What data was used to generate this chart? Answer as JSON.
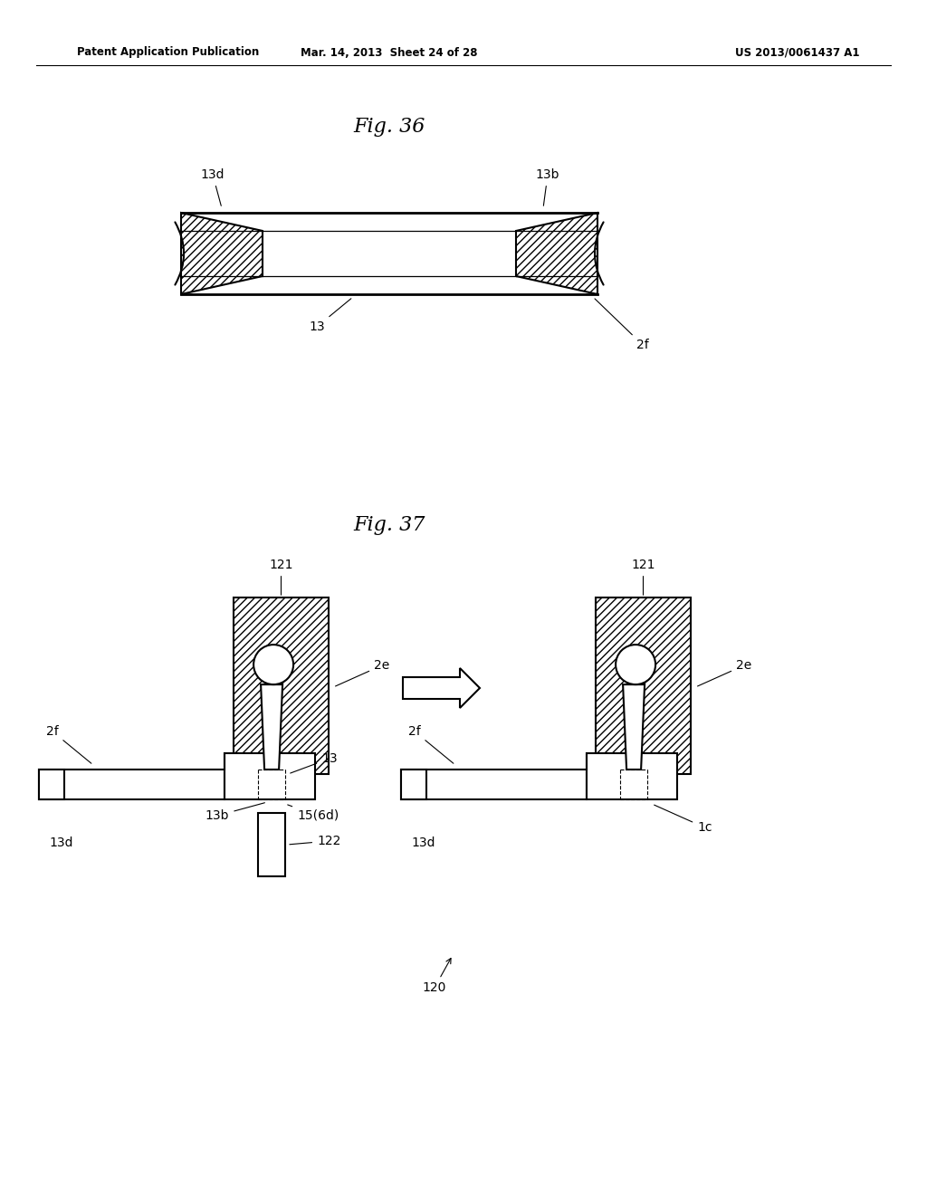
{
  "bg_color": "#ffffff",
  "line_color": "#000000",
  "header_left": "Patent Application Publication",
  "header_mid": "Mar. 14, 2013  Sheet 24 of 28",
  "header_right": "US 2013/0061437 A1",
  "fig36_title": "Fig. 36",
  "fig37_title": "Fig. 37"
}
